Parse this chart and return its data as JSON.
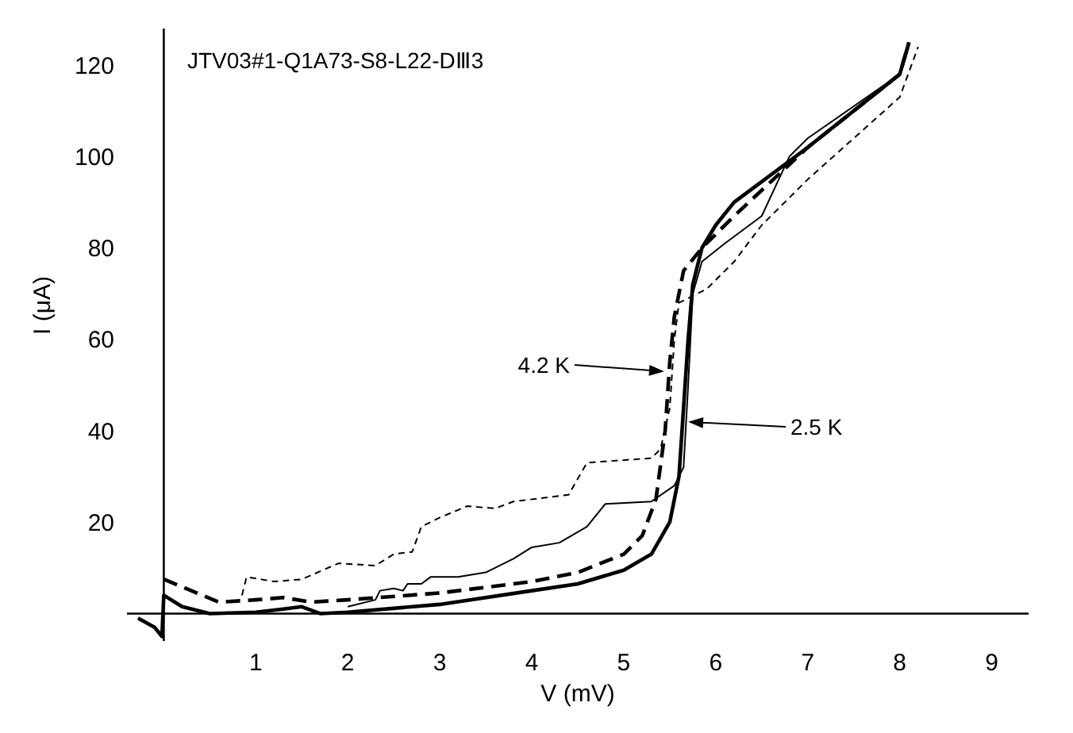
{
  "chart_data": {
    "type": "line",
    "title": "JTV03#1-Q1A73-S8-L22-DⅢ3",
    "xlabel": "V (mV)",
    "ylabel": "I (μA)",
    "xlim": [
      -0.4,
      9.4
    ],
    "ylim": [
      -6,
      128
    ],
    "xticks": [
      1,
      2,
      3,
      4,
      5,
      6,
      7,
      8,
      9
    ],
    "yticks": [
      20,
      40,
      60,
      80,
      100,
      120
    ],
    "marker": "none",
    "series": [
      {
        "color": "#000000",
        "line_style": "solid",
        "x": [
          -0.28,
          -0.1,
          -0.02,
          0,
          0.2,
          0.5,
          1,
          1.3,
          1.5,
          1.7,
          2,
          3,
          4,
          4.5,
          5,
          5.3,
          5.5,
          5.6,
          5.65,
          5.7,
          5.75,
          5.85,
          6,
          6.2,
          7,
          8,
          8.1
        ],
        "values": [
          -1,
          -3,
          -5,
          4,
          1.5,
          0,
          0.3,
          1,
          1.5,
          0,
          0.3,
          2,
          5,
          6.5,
          9.5,
          13,
          20,
          30,
          45,
          60,
          72,
          80,
          85,
          90,
          102,
          118,
          125
        ]
      },
      {
        "color": "#000000",
        "line_style": "dashed",
        "x": [
          0,
          0.3,
          0.6,
          1,
          1.3,
          1.6,
          2,
          3,
          4,
          4.5,
          5,
          5.2,
          5.35,
          5.45,
          5.5,
          5.55,
          5.65,
          5.85,
          6.2,
          7,
          8,
          8.1
        ],
        "values": [
          7.5,
          5,
          2.5,
          3,
          3.5,
          2.5,
          3,
          4.5,
          7,
          9,
          13,
          17,
          25,
          40,
          55,
          65,
          75,
          80,
          87,
          102,
          118,
          125
        ]
      },
      {
        "color": "#000000",
        "line_style": "solid",
        "x": [
          2,
          2.3,
          2.35,
          2.5,
          2.6,
          2.65,
          2.8,
          2.9,
          3.2,
          3.5,
          3.8,
          4,
          4.3,
          4.6,
          4.8,
          5.3,
          5.55,
          5.65,
          5.7,
          5.75,
          5.85,
          6.1,
          6.5,
          6.8,
          7,
          8,
          8.1
        ],
        "values": [
          1.5,
          3,
          5,
          5.5,
          5,
          6.5,
          6.5,
          8,
          8,
          9,
          12,
          14.5,
          15.5,
          19,
          24,
          24.5,
          28,
          32,
          50,
          70,
          77,
          81,
          87,
          100,
          104,
          118,
          124
        ]
      },
      {
        "color": "#000000",
        "line_style": "dashed",
        "x": [
          0.85,
          0.9,
          1.2,
          1.5,
          1.9,
          2.3,
          2.5,
          2.7,
          2.8,
          3,
          3.3,
          3.6,
          3.8,
          4.4,
          4.6,
          5.3,
          5.4,
          5.5,
          5.55,
          5.6,
          5.9,
          6.2,
          6.5,
          7,
          8,
          8.2
        ],
        "values": [
          4,
          8,
          7,
          7.5,
          11,
          10.5,
          13,
          13.5,
          19,
          21,
          23.5,
          23,
          24.5,
          26,
          33,
          34,
          36,
          45,
          60,
          68,
          71,
          77,
          85,
          95,
          113,
          124
        ]
      }
    ],
    "annotations": [
      "4.2 K",
      "2.5 K"
    ]
  }
}
